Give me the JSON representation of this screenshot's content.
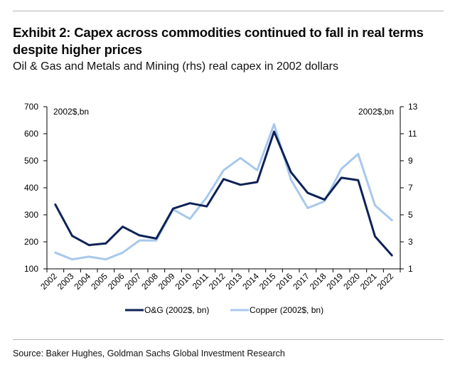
{
  "header": {
    "title": "Exhibit 2: Capex across commodities continued to fall in real terms despite higher prices",
    "subtitle": "Oil & Gas and Metals and Mining (rhs) real capex in 2002 dollars"
  },
  "footer": {
    "source": "Source: Baker Hughes, Goldman Sachs Global Investment Research"
  },
  "chart_data": {
    "type": "line",
    "x": [
      "2002",
      "2003",
      "2004",
      "2005",
      "2006",
      "2007",
      "2008",
      "2009",
      "2010",
      "2011",
      "2012",
      "2013",
      "2014",
      "2015",
      "2016",
      "2017",
      "2018",
      "2019",
      "2020",
      "2021",
      "2022"
    ],
    "y_left_label": "2002$,bn",
    "y_right_label": "2002$,bn",
    "y_left_ticks": [
      100,
      200,
      300,
      400,
      500,
      600,
      700
    ],
    "y_right_ticks": [
      1,
      3,
      5,
      7,
      9,
      11,
      13
    ],
    "ylim_left": [
      100,
      700
    ],
    "ylim_right": [
      1,
      13
    ],
    "grid": false,
    "legend_position": "bottom",
    "series": [
      {
        "name": "O&G (2002$, bn)",
        "axis": "left",
        "color": "#0d2257",
        "values": [
          338,
          222,
          188,
          194,
          256,
          224,
          212,
          323,
          343,
          331,
          432,
          411,
          421,
          608,
          458,
          381,
          356,
          437,
          428,
          220,
          150
        ]
      },
      {
        "name": "Copper (2002$, bn)",
        "axis": "right",
        "color": "#a8c8ec",
        "values": [
          2.2,
          1.7,
          1.9,
          1.7,
          2.2,
          3.1,
          3.1,
          5.4,
          4.7,
          6.3,
          8.3,
          9.2,
          8.3,
          11.7,
          7.6,
          5.5,
          6.0,
          8.4,
          9.5,
          5.7,
          4.6
        ]
      }
    ]
  }
}
